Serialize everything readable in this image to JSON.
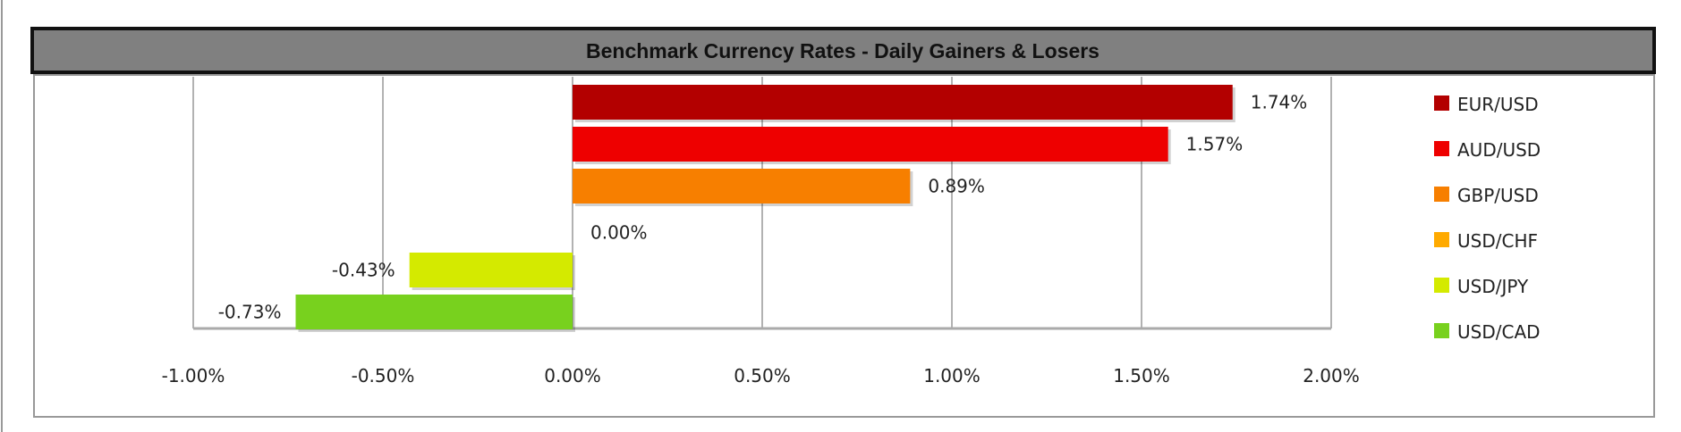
{
  "chart_data": {
    "type": "bar",
    "orientation": "horizontal",
    "title": "Benchmark Currency Rates - Daily Gainers & Losers",
    "categories": [
      "EUR/USD",
      "AUD/USD",
      "GBP/USD",
      "USD/CHF",
      "USD/JPY",
      "USD/CAD"
    ],
    "values": [
      1.74,
      1.57,
      0.89,
      0.0,
      -0.43,
      -0.73
    ],
    "data_labels": [
      "1.74%",
      "1.57%",
      "0.89%",
      "0.00%",
      "-0.43%",
      "-0.73%"
    ],
    "colors": [
      "#b30000",
      "#ee0000",
      "#f77f00",
      "#ffaa00",
      "#d4ea00",
      "#78d11e"
    ],
    "xlim": [
      -1.0,
      2.0
    ],
    "x_ticks": [
      -1.0,
      -0.5,
      0.0,
      0.5,
      1.0,
      1.5,
      2.0
    ],
    "x_tick_labels": [
      "-1.00%",
      "-0.50%",
      "0.00%",
      "0.50%",
      "1.00%",
      "1.50%",
      "2.00%"
    ],
    "xlabel": "",
    "ylabel": "",
    "grid": "vertical",
    "legend": "right",
    "title_bar_color": "#808080"
  }
}
